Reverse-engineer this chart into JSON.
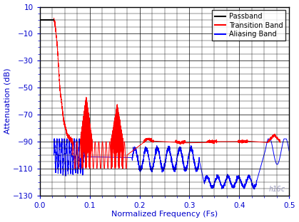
{
  "xlabel": "Normalized Frequency (Fs)",
  "ylabel": "Attenuation (dB)",
  "xlim": [
    0,
    0.5
  ],
  "ylim": [
    -130,
    10
  ],
  "yticks": [
    10,
    -10,
    -30,
    -50,
    -70,
    -90,
    -110,
    -130
  ],
  "xticks": [
    0,
    0.1,
    0.2,
    0.3,
    0.4,
    0.5
  ],
  "background_color": "#ffffff",
  "passband_color": "#000000",
  "transition_color": "#ff0000",
  "aliasing_color": "#0000ff",
  "watermark": "h16c",
  "watermark_color": "#9999bb",
  "legend_labels": [
    "Passband",
    "Transition Band",
    "Aliasing Band"
  ]
}
